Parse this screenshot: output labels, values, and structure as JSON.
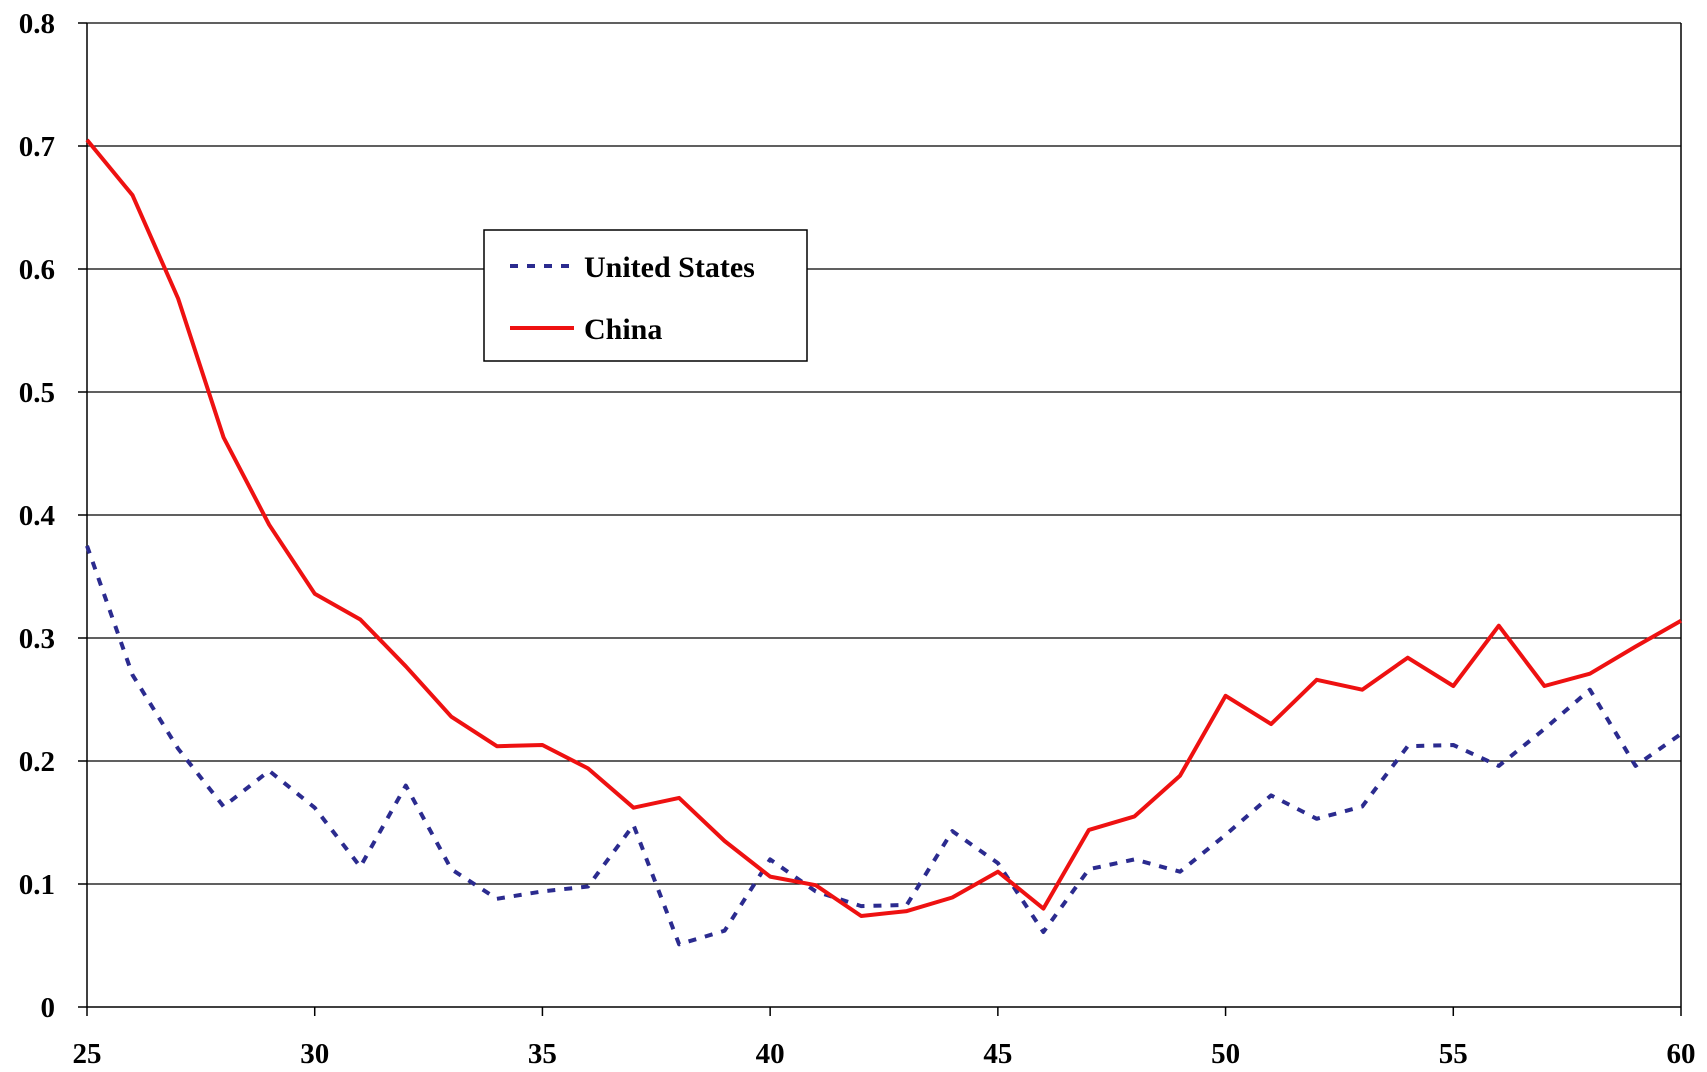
{
  "chart_data": {
    "type": "line",
    "title": "",
    "xlabel": "",
    "ylabel": "",
    "xlim": [
      25,
      60
    ],
    "ylim": [
      0,
      0.8
    ],
    "x_ticks": [
      25,
      30,
      35,
      40,
      45,
      50,
      55,
      60
    ],
    "x_tick_labels": [
      "25",
      "30",
      "35",
      "40",
      "45",
      "50",
      "55",
      "60"
    ],
    "y_ticks": [
      0,
      0.1,
      0.2,
      0.3,
      0.4,
      0.5,
      0.6,
      0.7,
      0.8
    ],
    "y_tick_labels": [
      "0",
      "0.1",
      "0.2",
      "0.3",
      "0.4",
      "0.5",
      "0.6",
      "0.7",
      "0.8"
    ],
    "grid": "horizontal",
    "legend_position": "upper-left-center",
    "x": [
      25,
      26,
      27,
      28,
      29,
      30,
      31,
      32,
      33,
      34,
      35,
      36,
      37,
      38,
      39,
      40,
      41,
      42,
      43,
      44,
      45,
      46,
      47,
      48,
      49,
      50,
      51,
      52,
      53,
      54,
      55,
      56,
      57,
      58,
      59,
      60
    ],
    "series": [
      {
        "name": "United States",
        "color": "#2b2b8f",
        "style": "dotted",
        "values": [
          0.375,
          0.27,
          0.21,
          0.163,
          0.192,
          0.162,
          0.114,
          0.18,
          0.112,
          0.088,
          0.094,
          0.098,
          0.148,
          0.051,
          0.062,
          0.12,
          0.094,
          0.082,
          0.083,
          0.143,
          0.117,
          0.061,
          0.112,
          0.12,
          0.11,
          0.14,
          0.172,
          0.153,
          0.163,
          0.212,
          0.213,
          0.196,
          0.226,
          0.258,
          0.196,
          0.222
        ]
      },
      {
        "name": "China",
        "color": "#ee1111",
        "style": "solid",
        "values": [
          0.705,
          0.66,
          0.576,
          0.463,
          0.392,
          0.336,
          0.315,
          0.277,
          0.236,
          0.212,
          0.213,
          0.194,
          0.162,
          0.17,
          0.135,
          0.106,
          0.099,
          0.074,
          0.078,
          0.089,
          0.11,
          0.08,
          0.144,
          0.155,
          0.188,
          0.253,
          0.23,
          0.266,
          0.258,
          0.284,
          0.261,
          0.31,
          0.261,
          0.271,
          0.293,
          0.314
        ]
      }
    ]
  }
}
